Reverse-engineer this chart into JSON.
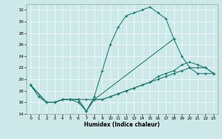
{
  "xlabel": "Humidex (Indice chaleur)",
  "bg_color": "#cce8e8",
  "grid_color": "#ffffff",
  "line_color": "#1a7a6e",
  "xlim": [
    -0.5,
    23.5
  ],
  "ylim": [
    14,
    33
  ],
  "xticks": [
    0,
    1,
    2,
    3,
    4,
    5,
    6,
    7,
    8,
    9,
    10,
    11,
    12,
    13,
    14,
    15,
    16,
    17,
    18,
    19,
    20,
    21,
    22,
    23
  ],
  "yticks": [
    14,
    16,
    18,
    20,
    22,
    24,
    26,
    28,
    30,
    32
  ],
  "line1_x": [
    0,
    1,
    2,
    3,
    4,
    5,
    6,
    7,
    8,
    9,
    10,
    11,
    12,
    13,
    14,
    15,
    16,
    17,
    18
  ],
  "line1_y": [
    19,
    17,
    16,
    16,
    16.5,
    16.5,
    16,
    14.5,
    17,
    21.5,
    26,
    29,
    31,
    31.5,
    32,
    32.5,
    31.5,
    30.5,
    27
  ],
  "line2_x": [
    0,
    2,
    3,
    4,
    5,
    6,
    7,
    8,
    18,
    19,
    20,
    21,
    22,
    23
  ],
  "line2_y": [
    19,
    16,
    16,
    16.5,
    16.5,
    16.5,
    16.5,
    16.5,
    27,
    24,
    22,
    21,
    21,
    21
  ],
  "line3_x": [
    0,
    2,
    3,
    4,
    5,
    6,
    7,
    8,
    9,
    10,
    11,
    12,
    13,
    14,
    15,
    16,
    17,
    18,
    19,
    20,
    21,
    22,
    23
  ],
  "line3_y": [
    19,
    16,
    16,
    16.5,
    16.5,
    16.5,
    14.5,
    16.5,
    16.5,
    17,
    17.5,
    18,
    18.5,
    19,
    19.5,
    20,
    20.5,
    21,
    21.5,
    22,
    22,
    22,
    21
  ],
  "line4_x": [
    0,
    2,
    3,
    4,
    5,
    6,
    7,
    8,
    9,
    10,
    11,
    12,
    13,
    14,
    15,
    16,
    17,
    18,
    19,
    20,
    21,
    22,
    23
  ],
  "line4_y": [
    19,
    16,
    16,
    16.5,
    16.5,
    16.5,
    14.5,
    16.5,
    16.5,
    17,
    17.5,
    18,
    18.5,
    19,
    19.5,
    20.5,
    21,
    21.5,
    22.5,
    23,
    22.5,
    22,
    21
  ]
}
